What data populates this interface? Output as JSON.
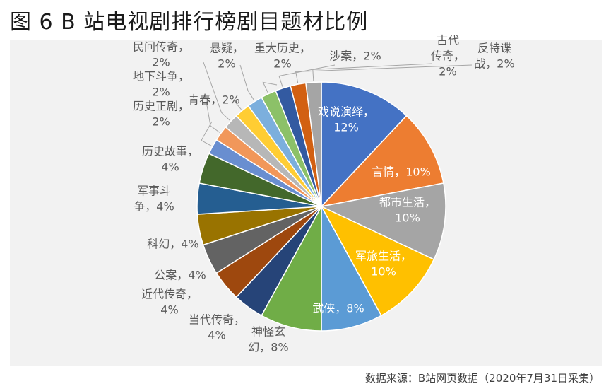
{
  "title": "图 6 B 站电视剧排行榜剧目题材比例",
  "source": "数据来源：B站网页数据（2020年7月31日采集）",
  "chart_data": {
    "type": "pie",
    "unit": "%",
    "slices": [
      {
        "name": "戏说演绎",
        "value": 12,
        "color": "#4472c4",
        "label_lines": [
          "戏说演绎，",
          "12%"
        ]
      },
      {
        "name": "言情",
        "value": 10,
        "color": "#ed7d31",
        "label_lines": [
          "言情，10%"
        ]
      },
      {
        "name": "都市生活",
        "value": 10,
        "color": "#a5a5a5",
        "label_lines": [
          "都市生活，",
          "10%"
        ]
      },
      {
        "name": "军旅生活",
        "value": 10,
        "color": "#ffc000",
        "label_lines": [
          "军旅生活，",
          "10%"
        ]
      },
      {
        "name": "武侠",
        "value": 8,
        "color": "#5b9bd5",
        "label_lines": [
          "武侠，8%"
        ]
      },
      {
        "name": "神怪玄幻",
        "value": 8,
        "color": "#70ad47",
        "label_lines": [
          "神怪玄",
          "幻，8%"
        ]
      },
      {
        "name": "当代传奇",
        "value": 4,
        "color": "#264478",
        "label_lines": [
          "当代传奇，",
          "4%"
        ]
      },
      {
        "name": "近代传奇",
        "value": 4,
        "color": "#9e480e",
        "label_lines": [
          "近代传奇，",
          "4%"
        ]
      },
      {
        "name": "公案",
        "value": 4,
        "color": "#636363",
        "label_lines": [
          "公案，4%"
        ]
      },
      {
        "name": "科幻",
        "value": 4,
        "color": "#997300",
        "label_lines": [
          "科幻，4%"
        ]
      },
      {
        "name": "军事斗争",
        "value": 4,
        "color": "#255e91",
        "label_lines": [
          "军事斗",
          "争，4%"
        ]
      },
      {
        "name": "历史故事",
        "value": 4,
        "color": "#43682b",
        "label_lines": [
          "历史故事，",
          "4%"
        ]
      },
      {
        "name": "历史正剧",
        "value": 2,
        "color": "#698ed0",
        "label_lines": [
          "历史正剧，",
          "2%"
        ]
      },
      {
        "name": "地下斗争",
        "value": 2,
        "color": "#f1975a",
        "label_lines": [
          "地下斗争，",
          "2%"
        ]
      },
      {
        "name": "民间传奇",
        "value": 2,
        "color": "#b7b7b7",
        "label_lines": [
          "民间传奇，",
          "2%"
        ]
      },
      {
        "name": "青春",
        "value": 2,
        "color": "#ffcd33",
        "label_lines": [
          "青春，2%"
        ]
      },
      {
        "name": "悬疑",
        "value": 2,
        "color": "#7cafdd",
        "label_lines": [
          "悬疑，",
          "2%"
        ]
      },
      {
        "name": "重大历史",
        "value": 2,
        "color": "#8cc168",
        "label_lines": [
          "重大历史，",
          "2%"
        ]
      },
      {
        "name": "涉案",
        "value": 2,
        "color": "#335aa1",
        "label_lines": [
          "涉案，2%"
        ]
      },
      {
        "name": "反特谍战",
        "value": 2,
        "color": "#d26012",
        "label_lines": [
          "反特谍",
          "战，2%"
        ]
      },
      {
        "name": "古代传奇",
        "value": 2,
        "color": "#a5a5a5",
        "label_lines": [
          "古代",
          "传奇，",
          "2%"
        ]
      }
    ]
  }
}
